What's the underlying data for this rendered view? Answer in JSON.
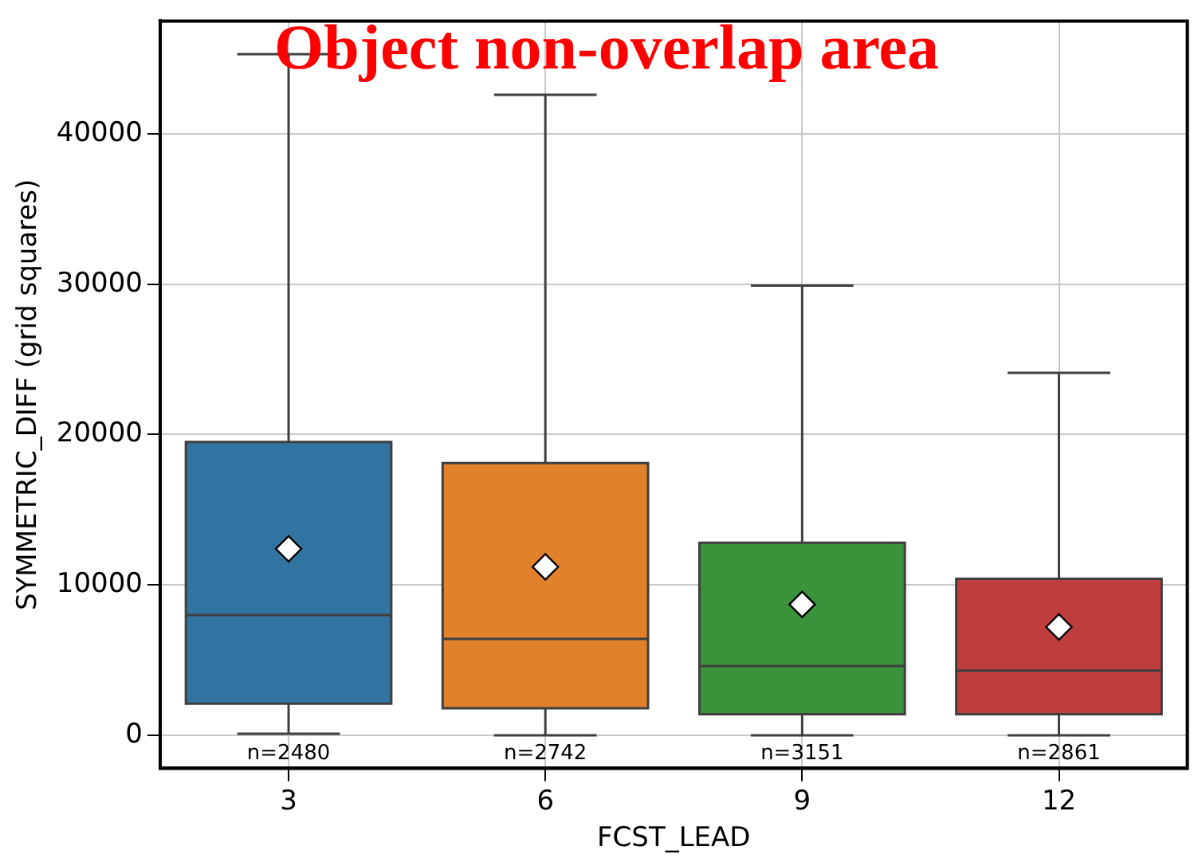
{
  "chart_data": {
    "type": "box",
    "title": "Object non-overlap area",
    "xlabel": "FCST_LEAD",
    "ylabel": "SYMMETRIC_DIFF (grid squares)",
    "categories": [
      "3",
      "6",
      "9",
      "12"
    ],
    "colors": [
      "#3274a1",
      "#e1812c",
      "#3a923a",
      "#c03d3e"
    ],
    "boxes": [
      {
        "low": 100,
        "q1": 2100,
        "median": 8000,
        "q3": 19500,
        "high": 45300,
        "mean": 12400
      },
      {
        "low": 0,
        "q1": 1800,
        "median": 6400,
        "q3": 18100,
        "high": 42600,
        "mean": 11200
      },
      {
        "low": 0,
        "q1": 1400,
        "median": 4600,
        "q3": 12800,
        "high": 29900,
        "mean": 8700
      },
      {
        "low": 0,
        "q1": 1400,
        "median": 4300,
        "q3": 10400,
        "high": 24100,
        "mean": 7200
      }
    ],
    "ylim": [
      -2200,
      47500
    ],
    "yticks": [
      0,
      10000,
      20000,
      30000,
      40000
    ],
    "grid": true,
    "legend": false,
    "annotations": [
      "n=2480",
      "n=2742",
      "n=3151",
      "n=2861"
    ]
  }
}
